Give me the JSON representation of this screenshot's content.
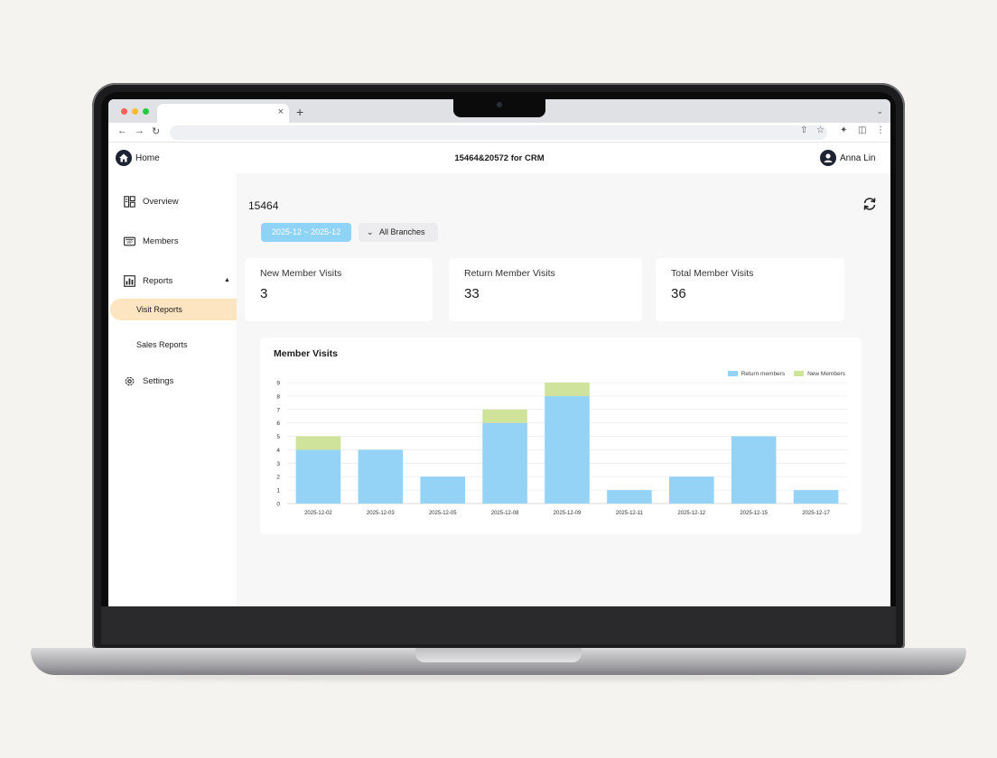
{
  "app": {
    "home_label": "Home",
    "title": "15464&20572 for CRM",
    "user_name": "Anna Lin"
  },
  "browser": {
    "tab_close": "×",
    "new_tab": "+"
  },
  "sidebar": {
    "items": [
      {
        "label": "Overview",
        "icon": "overview-icon"
      },
      {
        "label": "Members",
        "icon": "members-icon"
      },
      {
        "label": "Reports",
        "icon": "reports-icon"
      },
      {
        "label": "Visit Reports"
      },
      {
        "label": "Sales Reports"
      },
      {
        "label": "Settings",
        "icon": "gear-icon"
      }
    ],
    "active_item": "Visit Reports"
  },
  "main": {
    "entity_id": "15464",
    "date_range": "2025-12 ~ 2025-12",
    "branch_filter": "All Branches",
    "stats": [
      {
        "label": "New Member Visits",
        "value": "3"
      },
      {
        "label": "Return Member Visits",
        "value": "33"
      },
      {
        "label": "Total Member Visits",
        "value": "36"
      }
    ]
  },
  "colors": {
    "return": "#94d3f5",
    "new": "#cfe39a",
    "active_nav": "#fde5c1",
    "date_chip": "#8fd3f6"
  },
  "chart_data": {
    "type": "bar",
    "stacked": true,
    "title": "Member Visits",
    "categories": [
      "2025-12-02",
      "2025-12-03",
      "2025-12-05",
      "2025-12-08",
      "2025-12-09",
      "2025-12-11",
      "2025-12-12",
      "2025-12-15",
      "2025-12-17"
    ],
    "series": [
      {
        "name": "Return members",
        "color": "#94d3f5",
        "values": [
          4,
          4,
          2,
          6,
          8,
          1,
          2,
          5,
          1
        ]
      },
      {
        "name": "New Members",
        "color": "#cfe39a",
        "values": [
          1,
          0,
          0,
          1,
          1,
          0,
          0,
          0,
          0
        ]
      }
    ],
    "ylim": [
      0,
      9
    ],
    "yticks": [
      "0",
      "1",
      "2",
      "3",
      "4",
      "5",
      "6",
      "7",
      "8",
      "9"
    ],
    "legend": "top-right",
    "grid": true
  }
}
